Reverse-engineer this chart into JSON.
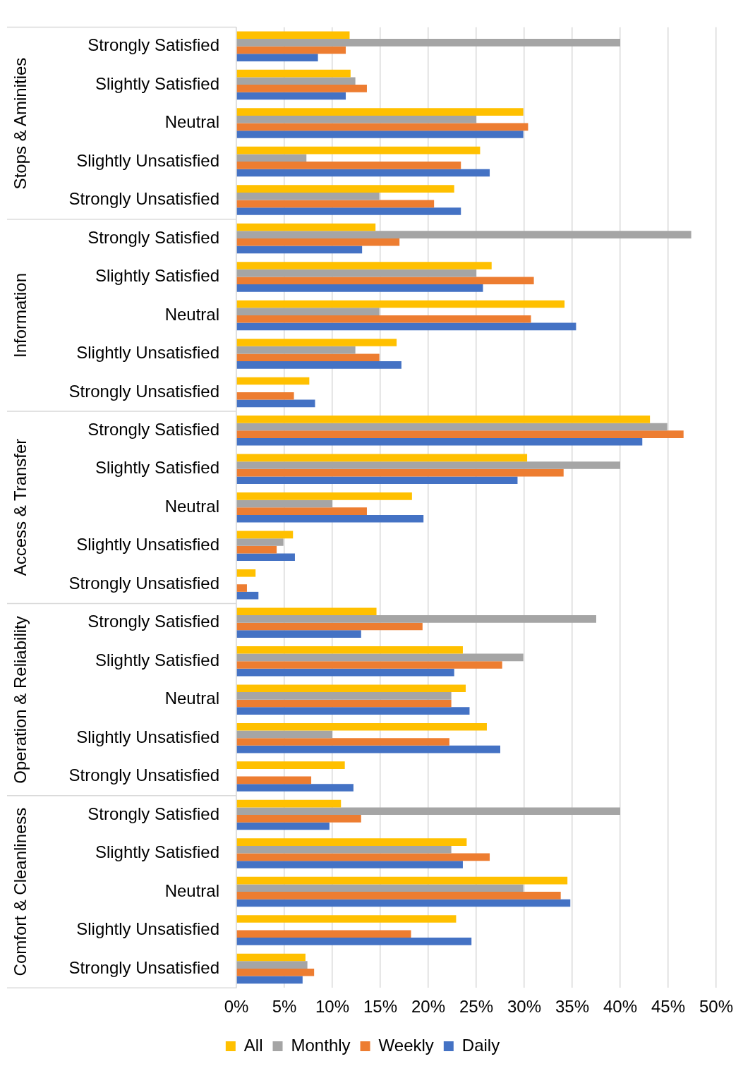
{
  "chart_data": {
    "type": "bar",
    "orientation": "horizontal",
    "grid": "x",
    "legend": "bottom",
    "categories": [
      "Strongly Satisfied",
      "Slightly Satisfied",
      "Neutral",
      "Slightly Unsatisfied",
      "Strongly Unsatisfied",
      "Strongly Satisfied",
      "Slightly Satisfied",
      "Neutral",
      "Slightly Unsatisfied",
      "Strongly Unsatisfied",
      "Strongly Satisfied",
      "Slightly Satisfied",
      "Neutral",
      "Slightly Unsatisfied",
      "Strongly Unsatisfied",
      "Strongly Satisfied",
      "Slightly Satisfied",
      "Neutral",
      "Slightly Unsatisfied",
      "Strongly Unsatisfied",
      "Strongly Satisfied",
      "Slightly Satisfied",
      "Neutral",
      "Slightly Unsatisfied",
      "Strongly Unsatisfied"
    ],
    "annotations": [
      "Stops & Aminities",
      "Information",
      "Access & Transfer",
      "Operation & Reliability",
      "Comfort & Cleanliness"
    ],
    "xlim": [
      0,
      50
    ],
    "xticks": [
      {
        "value": 0,
        "label": "0%"
      },
      {
        "value": 5,
        "label": "5%"
      },
      {
        "value": 10,
        "label": "10%"
      },
      {
        "value": 15,
        "label": "15%"
      },
      {
        "value": 20,
        "label": "20%"
      },
      {
        "value": 25,
        "label": "25%"
      },
      {
        "value": 30,
        "label": "30%"
      },
      {
        "value": 35,
        "label": "35%"
      },
      {
        "value": 40,
        "label": "40%"
      },
      {
        "value": 45,
        "label": "45%"
      },
      {
        "value": 50,
        "label": "50%"
      }
    ],
    "series": [
      {
        "name": "All",
        "color": "#ffc000",
        "values": [
          11.8,
          11.9,
          29.9,
          25.4,
          22.7,
          14.5,
          26.6,
          34.2,
          16.7,
          7.6,
          43.1,
          30.3,
          18.3,
          5.9,
          2.0,
          14.6,
          23.6,
          23.9,
          26.1,
          11.3,
          10.9,
          24.0,
          34.5,
          22.9,
          7.2
        ]
      },
      {
        "name": "Monthly",
        "color": "#a5a5a5",
        "values": [
          40.0,
          12.4,
          25.0,
          7.3,
          14.9,
          47.4,
          25.0,
          14.9,
          12.4,
          0,
          44.9,
          40.0,
          10.0,
          4.9,
          0,
          37.5,
          29.9,
          22.4,
          10.0,
          0,
          40.0,
          22.4,
          29.9,
          0,
          7.4
        ]
      },
      {
        "name": "Weekly",
        "color": "#ed7d31",
        "values": [
          11.4,
          13.6,
          30.4,
          23.4,
          20.6,
          17.0,
          31.0,
          30.7,
          14.9,
          6.0,
          46.6,
          34.1,
          13.6,
          4.2,
          1.1,
          19.4,
          27.7,
          22.4,
          22.2,
          7.8,
          13.0,
          26.4,
          33.8,
          18.2,
          8.1
        ]
      },
      {
        "name": "Daily",
        "color": "#4472c4",
        "values": [
          8.5,
          11.4,
          29.9,
          26.4,
          23.4,
          13.1,
          25.7,
          35.4,
          17.2,
          8.2,
          42.3,
          29.3,
          19.5,
          6.1,
          2.3,
          13.0,
          22.7,
          24.3,
          27.5,
          12.2,
          9.7,
          23.6,
          34.8,
          24.5,
          6.9
        ]
      }
    ]
  }
}
